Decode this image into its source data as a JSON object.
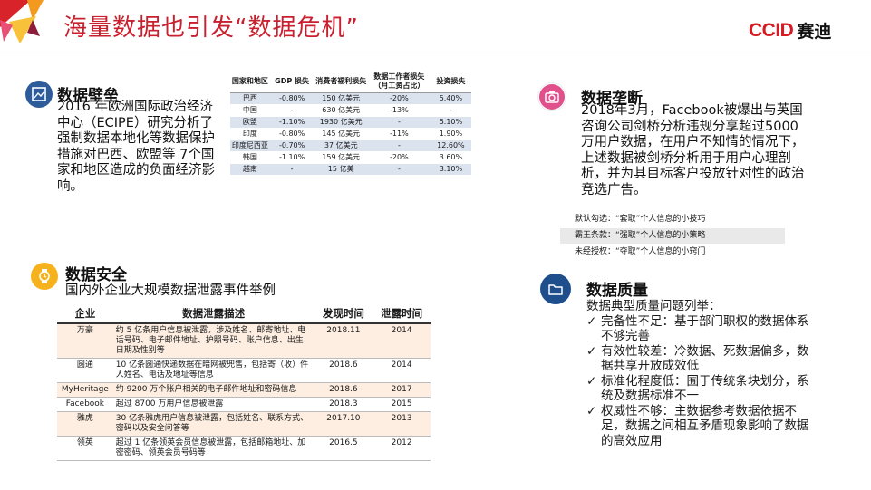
{
  "header": {
    "title": "海量数据也引发“数据危机”",
    "logo_en": "CCID",
    "logo_cn": "赛迪"
  },
  "barrier": {
    "icon": "image-frame-icon",
    "title": "数据壁垒",
    "text": "2016 年欧洲国际政治经济中心（ECIPE）研究分析了强制数据本地化等数据保护措施对巴西、欧盟等 7个国家和地区造成的负面经济影响。",
    "table": {
      "headers": [
        "国家和地区",
        "GDP 损失",
        "消费者福利损失",
        "数据工作者损失（月工资占比）",
        "投资损失"
      ],
      "rows": [
        [
          "巴西",
          "-0.80%",
          "150 亿美元",
          "-20%",
          "5.40%"
        ],
        [
          "中国",
          "-",
          "630 亿美元",
          "-13%",
          "-"
        ],
        [
          "欧盟",
          "-1.10%",
          "1930 亿美元",
          "-",
          "5.10%"
        ],
        [
          "印度",
          "-0.80%",
          "145 亿美元",
          "-11%",
          "1.90%"
        ],
        [
          "印度尼西亚",
          "-0.70%",
          "37 亿美元",
          "-",
          "12.60%"
        ],
        [
          "韩国",
          "-1.10%",
          "159 亿美元",
          "-20%",
          "3.60%"
        ],
        [
          "越南",
          "-",
          "15 亿美",
          "-",
          "3.10%"
        ]
      ]
    }
  },
  "monopoly": {
    "icon": "camera-icon",
    "title": "数据垄断",
    "text": "2018年3月，Facebook被爆出与英国咨询公司剑桥分析违规分享超过5000万用户数据，在用户不知情的情况下，上述数据被剑桥分析用于用户心理剖析，并为其目标客户投放针对性的政治竞选广告。",
    "labels": [
      "默认勾选：“套取”个人信息的小技巧",
      "霸王条款：“强取”个人信息的小策略",
      "未经授权：“夺取”个人信息的小窍门"
    ]
  },
  "security": {
    "icon": "watch-icon",
    "title": "数据安全",
    "subtitle": "国内外企业大规模数据泄露事件举例",
    "table": {
      "headers": [
        "企业",
        "数据泄露描述",
        "发现时间",
        "泄露时间"
      ],
      "rows": [
        [
          "万豪",
          "约 5 亿条用户信息被泄露，涉及姓名、邮寄地址、电话号码、电子邮件地址、护照号码、账户信息、出生日期及性别等",
          "2018.11",
          "2014"
        ],
        [
          "圆通",
          "10 亿条圆通快递数据在暗网被兜售，包括寄（收）件人姓名、电话及地址等信息",
          "2018.6",
          "2014"
        ],
        [
          "MyHeritage",
          "约 9200 万个账户相关的电子邮件地址和密码信息",
          "2018.6",
          "2017"
        ],
        [
          "Facebook",
          "超过 8700 万用户信息被泄露",
          "2018.3",
          "2015"
        ],
        [
          "雅虎",
          "30 亿条雅虎用户信息被泄露，包括姓名、联系方式、密码以及安全问答等",
          "2017.10",
          "2013"
        ],
        [
          "领英",
          "超过 1 亿条领英会员信息被泄露，包括邮箱地址、加密密码、领英会员号码等",
          "2016.5",
          "2012"
        ]
      ]
    }
  },
  "quality": {
    "icon": "folder-icon",
    "title": "数据质量",
    "intro": "数据典型质量问题列举：",
    "check": "✓",
    "items": [
      "完备性不足：基于部门职权的数据体系不够完善",
      "有效性较差：冷数据、死数据偏多，数据共享开放成效低",
      "标准化程度低：囿于传统条块划分，系统及数据标准不一",
      "权威性不够：主数据参考数据依据不足，数据之间相互矛盾现象影响了数据的高效应用"
    ]
  },
  "colors": {
    "title_red": "#c8202f",
    "barrier_icon": "#2e5c9a",
    "monopoly_icon": "#e0508a",
    "security_icon": "#f5b21c",
    "quality_icon": "#1f4e8c",
    "table_blue": "#dbe3ef",
    "table_peach": "#fdeee1"
  }
}
